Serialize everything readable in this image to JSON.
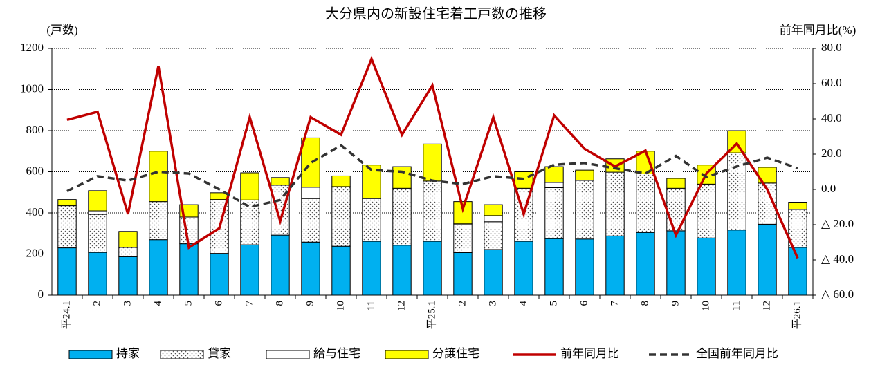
{
  "chart_data": {
    "type": "bar",
    "stacked": true,
    "title": "大分県内の新設住宅着工戸数の推移",
    "y_label": "(戸数)",
    "y2_label": "前年同月比(%)",
    "categories": [
      "平24.1",
      "2",
      "3",
      "4",
      "5",
      "6",
      "7",
      "8",
      "9",
      "10",
      "11",
      "12",
      "平25.1",
      "2",
      "3",
      "4",
      "5",
      "6",
      "7",
      "8",
      "9",
      "10",
      "11",
      "12",
      "平26.1"
    ],
    "ylim": [
      0,
      1200
    ],
    "yticks": [
      0,
      200,
      400,
      600,
      800,
      1000,
      1200
    ],
    "y2lim": [
      -60,
      80
    ],
    "y2ticks": [
      {
        "value": -60,
        "label": "△ 60.0"
      },
      {
        "value": -40,
        "label": "△ 40.0"
      },
      {
        "value": -20,
        "label": "△ 20.0"
      },
      {
        "value": 0,
        "label": "0.0"
      },
      {
        "value": 20,
        "label": "20.0"
      },
      {
        "value": 40,
        "label": "40.0"
      },
      {
        "value": 60,
        "label": "60.0"
      },
      {
        "value": 80,
        "label": "80.0"
      }
    ],
    "grid": true,
    "series": [
      {
        "name": "持家",
        "type": "bar",
        "color": "#00b0f0",
        "values": [
          230,
          208,
          187,
          270,
          250,
          203,
          245,
          292,
          258,
          238,
          262,
          243,
          262,
          207,
          222,
          262,
          275,
          273,
          288,
          305,
          313,
          278,
          317,
          345,
          232
        ]
      },
      {
        "name": "貸家",
        "type": "bar",
        "color": "#ffffff",
        "pattern": "dots",
        "values": [
          205,
          185,
          45,
          185,
          130,
          262,
          218,
          243,
          212,
          290,
          208,
          277,
          293,
          135,
          135,
          258,
          248,
          285,
          310,
          285,
          207,
          262,
          375,
          200,
          185
        ]
      },
      {
        "name": "給与住宅",
        "type": "bar",
        "color": "#ffffff",
        "values": [
          0,
          17,
          0,
          0,
          0,
          0,
          0,
          0,
          55,
          0,
          0,
          0,
          0,
          5,
          30,
          0,
          25,
          0,
          0,
          0,
          0,
          0,
          0,
          0,
          0
        ]
      },
      {
        "name": "分譲住宅",
        "type": "bar",
        "color": "#ffff00",
        "values": [
          30,
          98,
          78,
          245,
          60,
          33,
          132,
          37,
          240,
          52,
          163,
          105,
          180,
          108,
          53,
          80,
          77,
          50,
          65,
          110,
          48,
          93,
          108,
          77,
          35
        ]
      },
      {
        "name": "前年同月比",
        "type": "line",
        "axis": "y2",
        "color": "#c00000",
        "dashed": false,
        "values": [
          39.5,
          44,
          -14,
          70,
          -33,
          -22,
          41,
          -18,
          41,
          31,
          74,
          31,
          59,
          -11,
          41,
          -14,
          42,
          23,
          13,
          22,
          -26,
          9,
          26,
          0,
          -39
        ]
      },
      {
        "name": "全国前年同月比",
        "type": "line",
        "axis": "y2",
        "color": "#333333",
        "dashed": true,
        "values": [
          -1,
          7.5,
          5,
          10,
          9,
          0,
          -10,
          -6,
          15,
          25,
          11,
          10,
          5,
          3,
          7.5,
          6,
          14,
          15,
          12,
          9,
          19,
          7,
          13,
          18,
          12
        ]
      }
    ]
  }
}
